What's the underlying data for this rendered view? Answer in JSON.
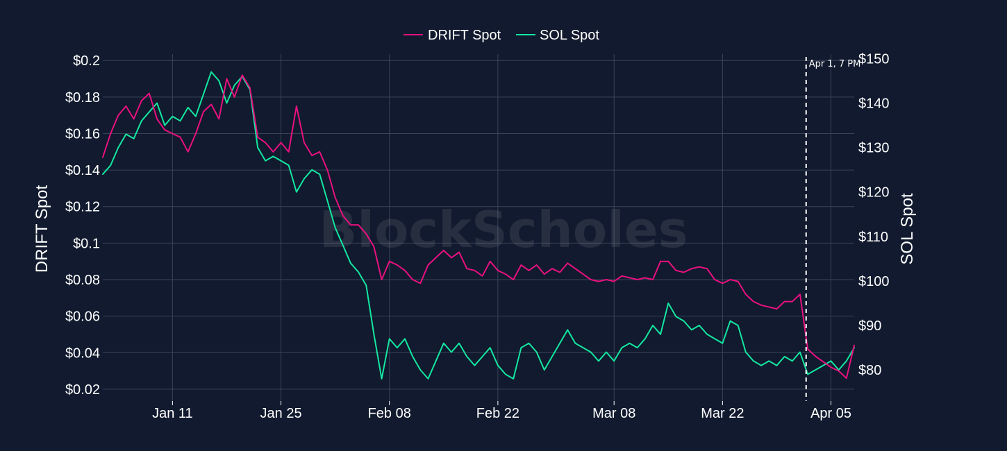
{
  "watermark": "BlockScholes",
  "chart_data": {
    "type": "line",
    "title": "",
    "x_start": "2024-01-02",
    "x_end": "2024-04-08",
    "x_ticks": [
      {
        "date": "2024-01-11",
        "label": "Jan 11"
      },
      {
        "date": "2024-01-25",
        "label": "Jan 25"
      },
      {
        "date": "2024-02-08",
        "label": "Feb 08"
      },
      {
        "date": "2024-02-22",
        "label": "Feb 22"
      },
      {
        "date": "2024-03-08",
        "label": "Mar 08"
      },
      {
        "date": "2024-03-22",
        "label": "Mar 22"
      },
      {
        "date": "2024-04-05",
        "label": "Apr 05"
      }
    ],
    "y_left": {
      "label": "DRIFT Spot",
      "range": [
        0.0135,
        0.2035
      ],
      "ticks": [
        0.02,
        0.04,
        0.06,
        0.08,
        0.1,
        0.12,
        0.14,
        0.16,
        0.18,
        0.2
      ],
      "tick_labels": [
        "$0.02",
        "$0.04",
        "$0.06",
        "$0.08",
        "$0.1",
        "$0.12",
        "$0.14",
        "$0.16",
        "$0.18",
        "$0.2"
      ]
    },
    "y_right": {
      "label": "SOL Spot",
      "range": [
        73,
        151
      ],
      "ticks": [
        80,
        90,
        100,
        110,
        120,
        130,
        140,
        150
      ],
      "tick_labels": [
        "$80",
        "$90",
        "$100",
        "$110",
        "$120",
        "$130",
        "$140",
        "$150"
      ]
    },
    "grid": true,
    "legend_position": "top-center",
    "annotation": {
      "date": "2024-04-01T19:00",
      "label": "Apr 1, 7 PM",
      "style": "dashed-vertical-line"
    },
    "series": [
      {
        "name": "DRIFT Spot",
        "axis": "left",
        "color": "#e8117f",
        "points": [
          [
            "2024-01-02",
            0.147
          ],
          [
            "2024-01-03",
            0.16
          ],
          [
            "2024-01-04",
            0.17
          ],
          [
            "2024-01-05",
            0.175
          ],
          [
            "2024-01-06",
            0.168
          ],
          [
            "2024-01-07",
            0.178
          ],
          [
            "2024-01-08",
            0.182
          ],
          [
            "2024-01-09",
            0.168
          ],
          [
            "2024-01-10",
            0.162
          ],
          [
            "2024-01-11",
            0.16
          ],
          [
            "2024-01-12",
            0.158
          ],
          [
            "2024-01-13",
            0.15
          ],
          [
            "2024-01-14",
            0.16
          ],
          [
            "2024-01-15",
            0.172
          ],
          [
            "2024-01-16",
            0.176
          ],
          [
            "2024-01-17",
            0.168
          ],
          [
            "2024-01-18",
            0.19
          ],
          [
            "2024-01-19",
            0.18
          ],
          [
            "2024-01-20",
            0.192
          ],
          [
            "2024-01-21",
            0.185
          ],
          [
            "2024-01-22",
            0.158
          ],
          [
            "2024-01-23",
            0.155
          ],
          [
            "2024-01-24",
            0.15
          ],
          [
            "2024-01-25",
            0.155
          ],
          [
            "2024-01-26",
            0.15
          ],
          [
            "2024-01-27",
            0.175
          ],
          [
            "2024-01-28",
            0.155
          ],
          [
            "2024-01-29",
            0.148
          ],
          [
            "2024-01-30",
            0.15
          ],
          [
            "2024-01-31",
            0.14
          ],
          [
            "2024-02-01",
            0.125
          ],
          [
            "2024-02-02",
            0.115
          ],
          [
            "2024-02-03",
            0.11
          ],
          [
            "2024-02-04",
            0.11
          ],
          [
            "2024-02-05",
            0.105
          ],
          [
            "2024-02-06",
            0.098
          ],
          [
            "2024-02-07",
            0.08
          ],
          [
            "2024-02-08",
            0.09
          ],
          [
            "2024-02-09",
            0.088
          ],
          [
            "2024-02-10",
            0.085
          ],
          [
            "2024-02-11",
            0.08
          ],
          [
            "2024-02-12",
            0.078
          ],
          [
            "2024-02-13",
            0.088
          ],
          [
            "2024-02-14",
            0.092
          ],
          [
            "2024-02-15",
            0.096
          ],
          [
            "2024-02-16",
            0.092
          ],
          [
            "2024-02-17",
            0.095
          ],
          [
            "2024-02-18",
            0.086
          ],
          [
            "2024-02-19",
            0.085
          ],
          [
            "2024-02-20",
            0.082
          ],
          [
            "2024-02-21",
            0.09
          ],
          [
            "2024-02-22",
            0.085
          ],
          [
            "2024-02-23",
            0.083
          ],
          [
            "2024-02-24",
            0.08
          ],
          [
            "2024-02-25",
            0.088
          ],
          [
            "2024-02-26",
            0.085
          ],
          [
            "2024-02-27",
            0.088
          ],
          [
            "2024-02-28",
            0.083
          ],
          [
            "2024-02-29",
            0.086
          ],
          [
            "2024-03-01",
            0.084
          ],
          [
            "2024-03-02",
            0.089
          ],
          [
            "2024-03-03",
            0.086
          ],
          [
            "2024-03-04",
            0.083
          ],
          [
            "2024-03-05",
            0.08
          ],
          [
            "2024-03-06",
            0.079
          ],
          [
            "2024-03-07",
            0.08
          ],
          [
            "2024-03-08",
            0.079
          ],
          [
            "2024-03-09",
            0.082
          ],
          [
            "2024-03-10",
            0.081
          ],
          [
            "2024-03-11",
            0.08
          ],
          [
            "2024-03-12",
            0.081
          ],
          [
            "2024-03-13",
            0.08
          ],
          [
            "2024-03-14",
            0.09
          ],
          [
            "2024-03-15",
            0.09
          ],
          [
            "2024-03-16",
            0.085
          ],
          [
            "2024-03-17",
            0.084
          ],
          [
            "2024-03-18",
            0.086
          ],
          [
            "2024-03-19",
            0.087
          ],
          [
            "2024-03-20",
            0.086
          ],
          [
            "2024-03-21",
            0.08
          ],
          [
            "2024-03-22",
            0.078
          ],
          [
            "2024-03-23",
            0.08
          ],
          [
            "2024-03-24",
            0.079
          ],
          [
            "2024-03-25",
            0.072
          ],
          [
            "2024-03-26",
            0.068
          ],
          [
            "2024-03-27",
            0.066
          ],
          [
            "2024-03-28",
            0.065
          ],
          [
            "2024-03-29",
            0.064
          ],
          [
            "2024-03-30",
            0.068
          ],
          [
            "2024-03-31",
            0.068
          ],
          [
            "2024-04-01",
            0.072
          ],
          [
            "2024-04-02",
            0.042
          ],
          [
            "2024-04-03",
            0.038
          ],
          [
            "2024-04-04",
            0.035
          ],
          [
            "2024-04-05",
            0.032
          ],
          [
            "2024-04-06",
            0.03
          ],
          [
            "2024-04-07",
            0.026
          ],
          [
            "2024-04-08",
            0.044
          ]
        ]
      },
      {
        "name": "SOL Spot",
        "axis": "right",
        "color": "#14e7a1",
        "points": [
          [
            "2024-01-02",
            124
          ],
          [
            "2024-01-03",
            126
          ],
          [
            "2024-01-04",
            130
          ],
          [
            "2024-01-05",
            133
          ],
          [
            "2024-01-06",
            132
          ],
          [
            "2024-01-07",
            136
          ],
          [
            "2024-01-08",
            138
          ],
          [
            "2024-01-09",
            140
          ],
          [
            "2024-01-10",
            135
          ],
          [
            "2024-01-11",
            137
          ],
          [
            "2024-01-12",
            136
          ],
          [
            "2024-01-13",
            139
          ],
          [
            "2024-01-14",
            137
          ],
          [
            "2024-01-15",
            142
          ],
          [
            "2024-01-16",
            147
          ],
          [
            "2024-01-17",
            145
          ],
          [
            "2024-01-18",
            140
          ],
          [
            "2024-01-19",
            144
          ],
          [
            "2024-01-20",
            146
          ],
          [
            "2024-01-21",
            143
          ],
          [
            "2024-01-22",
            130
          ],
          [
            "2024-01-23",
            127
          ],
          [
            "2024-01-24",
            128
          ],
          [
            "2024-01-25",
            127
          ],
          [
            "2024-01-26",
            126
          ],
          [
            "2024-01-27",
            120
          ],
          [
            "2024-01-28",
            123
          ],
          [
            "2024-01-29",
            125
          ],
          [
            "2024-01-30",
            124
          ],
          [
            "2024-01-31",
            118
          ],
          [
            "2024-02-01",
            112
          ],
          [
            "2024-02-02",
            108
          ],
          [
            "2024-02-03",
            104
          ],
          [
            "2024-02-04",
            102
          ],
          [
            "2024-02-05",
            99
          ],
          [
            "2024-02-06",
            88
          ],
          [
            "2024-02-07",
            78
          ],
          [
            "2024-02-08",
            87
          ],
          [
            "2024-02-09",
            85
          ],
          [
            "2024-02-10",
            87
          ],
          [
            "2024-02-11",
            83
          ],
          [
            "2024-02-12",
            80
          ],
          [
            "2024-02-13",
            78
          ],
          [
            "2024-02-14",
            82
          ],
          [
            "2024-02-15",
            86
          ],
          [
            "2024-02-16",
            84
          ],
          [
            "2024-02-17",
            86
          ],
          [
            "2024-02-18",
            83
          ],
          [
            "2024-02-19",
            81
          ],
          [
            "2024-02-20",
            83
          ],
          [
            "2024-02-21",
            85
          ],
          [
            "2024-02-22",
            81
          ],
          [
            "2024-02-23",
            79
          ],
          [
            "2024-02-24",
            78
          ],
          [
            "2024-02-25",
            85
          ],
          [
            "2024-02-26",
            86
          ],
          [
            "2024-02-27",
            84
          ],
          [
            "2024-02-28",
            80
          ],
          [
            "2024-02-29",
            83
          ],
          [
            "2024-03-01",
            86
          ],
          [
            "2024-03-02",
            89
          ],
          [
            "2024-03-03",
            86
          ],
          [
            "2024-03-04",
            85
          ],
          [
            "2024-03-05",
            84
          ],
          [
            "2024-03-06",
            82
          ],
          [
            "2024-03-07",
            84
          ],
          [
            "2024-03-08",
            82
          ],
          [
            "2024-03-09",
            85
          ],
          [
            "2024-03-10",
            86
          ],
          [
            "2024-03-11",
            85
          ],
          [
            "2024-03-12",
            87
          ],
          [
            "2024-03-13",
            90
          ],
          [
            "2024-03-14",
            88
          ],
          [
            "2024-03-15",
            95
          ],
          [
            "2024-03-16",
            92
          ],
          [
            "2024-03-17",
            91
          ],
          [
            "2024-03-18",
            89
          ],
          [
            "2024-03-19",
            90
          ],
          [
            "2024-03-20",
            88
          ],
          [
            "2024-03-21",
            87
          ],
          [
            "2024-03-22",
            86
          ],
          [
            "2024-03-23",
            91
          ],
          [
            "2024-03-24",
            90
          ],
          [
            "2024-03-25",
            84
          ],
          [
            "2024-03-26",
            82
          ],
          [
            "2024-03-27",
            81
          ],
          [
            "2024-03-28",
            82
          ],
          [
            "2024-03-29",
            81
          ],
          [
            "2024-03-30",
            83
          ],
          [
            "2024-03-31",
            82
          ],
          [
            "2024-04-01",
            84
          ],
          [
            "2024-04-02",
            79
          ],
          [
            "2024-04-03",
            80
          ],
          [
            "2024-04-04",
            81
          ],
          [
            "2024-04-05",
            82
          ],
          [
            "2024-04-06",
            80
          ],
          [
            "2024-04-07",
            82
          ],
          [
            "2024-04-08",
            85
          ]
        ]
      }
    ]
  }
}
